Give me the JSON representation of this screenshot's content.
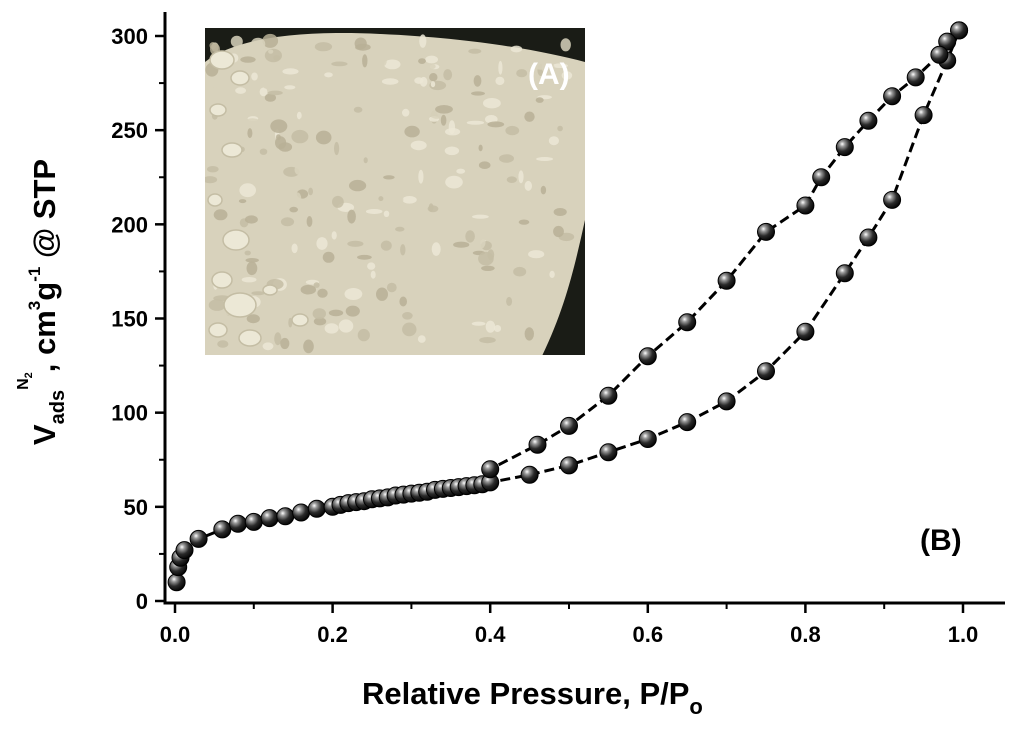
{
  "chart_data": {
    "type": "line",
    "xlabel": {
      "main": "Relative Pressure, P/P",
      "sub": "o"
    },
    "ylabel": {
      "v": "V",
      "ads": "ads",
      "n2_n": "N",
      "n2_2": "2",
      "unit": ", cm",
      "cube": "3",
      "g": "g",
      "minus1": "-1",
      "stp": " @ STP"
    },
    "xlim": [
      0.0,
      1.0
    ],
    "ylim": [
      0,
      300
    ],
    "xticks": [
      "0.0",
      "0.2",
      "0.4",
      "0.6",
      "0.8",
      "1.0"
    ],
    "yticks": [
      "0",
      "50",
      "100",
      "150",
      "200",
      "250",
      "300"
    ],
    "panel_label": "(B)",
    "inset_label": "(A)",
    "marker_color": "#1a1a1a",
    "line_color": "#000000",
    "series": [
      {
        "role": "adsorption",
        "x": [
          0.002,
          0.004,
          0.007,
          0.012,
          0.03,
          0.06,
          0.08,
          0.1,
          0.12,
          0.14,
          0.16,
          0.18,
          0.2,
          0.21,
          0.22,
          0.23,
          0.24,
          0.25,
          0.26,
          0.27,
          0.28,
          0.29,
          0.3,
          0.31,
          0.32,
          0.33,
          0.34,
          0.35,
          0.36,
          0.37,
          0.38,
          0.39,
          0.4,
          0.45,
          0.5,
          0.55,
          0.6,
          0.65,
          0.7,
          0.75,
          0.8,
          0.85,
          0.88,
          0.91,
          0.95,
          0.98,
          0.995
        ],
        "y": [
          10,
          18,
          23,
          27,
          33,
          38,
          41,
          42,
          44,
          45,
          47,
          49,
          50,
          51,
          52,
          52.5,
          53,
          54,
          54.5,
          55,
          56,
          56.5,
          57,
          57.5,
          58,
          59,
          59.5,
          60,
          60.5,
          61,
          61.5,
          62,
          63,
          67,
          72,
          79,
          86,
          95,
          106,
          122,
          143,
          174,
          193,
          213,
          258,
          287,
          303
        ]
      },
      {
        "role": "desorption",
        "x": [
          0.995,
          0.98,
          0.97,
          0.94,
          0.91,
          0.88,
          0.85,
          0.82,
          0.8,
          0.75,
          0.7,
          0.65,
          0.6,
          0.55,
          0.5,
          0.46,
          0.4
        ],
        "y": [
          303,
          297,
          290,
          278,
          268,
          255,
          241,
          225,
          210,
          196,
          170,
          148,
          130,
          109,
          93,
          83,
          70
        ]
      }
    ]
  },
  "inset": {
    "subject": "powder-photo",
    "bg_color": "#1a1c16",
    "powder_color": "#d8d2bc",
    "shade_color": "#c4bda4",
    "highlight_color": "#ece8d6"
  }
}
